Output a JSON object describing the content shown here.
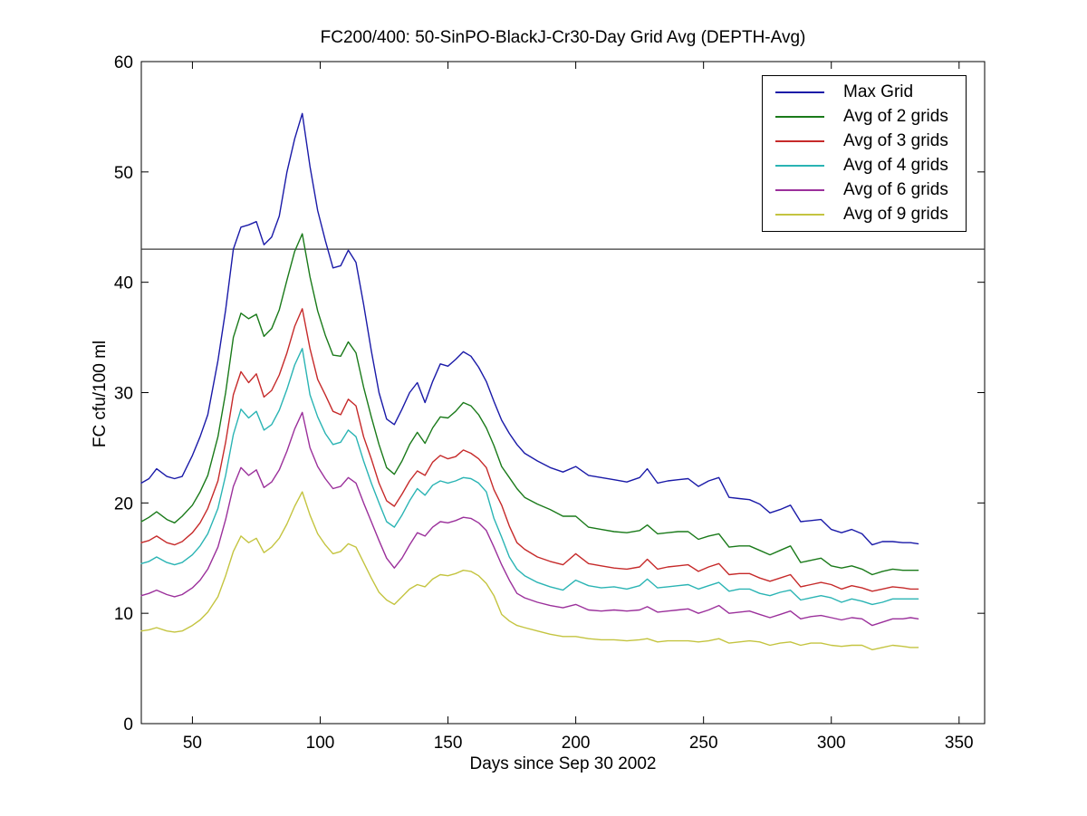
{
  "background": "#ffffff",
  "axes_color": "#000000",
  "chart_data": {
    "type": "line",
    "title": "FC200/400: 50-SinPO-BlackJ-Cr30-Day Grid Avg (DEPTH-Avg)",
    "xlabel": "Days since Sep 30 2002",
    "ylabel": "FC cfu/100 ml",
    "xlim": [
      30,
      360
    ],
    "ylim": [
      0,
      60
    ],
    "xticks": [
      50,
      100,
      150,
      200,
      250,
      300,
      350
    ],
    "yticks": [
      0,
      10,
      20,
      30,
      40,
      50,
      60
    ],
    "grid": false,
    "legend_position": "upper right",
    "reference_line": {
      "y": 43,
      "color": "#3a3a3a"
    },
    "x": [
      30,
      33,
      36,
      40,
      43,
      46,
      50,
      53,
      56,
      60,
      63,
      66,
      69,
      72,
      75,
      78,
      81,
      84,
      87,
      90,
      93,
      96,
      99,
      102,
      105,
      108,
      111,
      114,
      117,
      120,
      123,
      126,
      129,
      132,
      135,
      138,
      141,
      144,
      147,
      150,
      153,
      156,
      159,
      162,
      165,
      168,
      171,
      174,
      177,
      180,
      185,
      190,
      195,
      200,
      205,
      210,
      215,
      220,
      225,
      228,
      232,
      236,
      240,
      244,
      248,
      252,
      256,
      260,
      264,
      268,
      272,
      276,
      280,
      284,
      288,
      292,
      296,
      300,
      304,
      308,
      312,
      316,
      320,
      324,
      328,
      331,
      334
    ],
    "series": [
      {
        "name": "Max Grid",
        "color": "#1a1aa8",
        "values": [
          21.8,
          22.2,
          23.1,
          22.4,
          22.2,
          22.4,
          24.3,
          26.0,
          28.0,
          32.9,
          37.5,
          43.0,
          45.0,
          45.2,
          45.5,
          43.4,
          44.1,
          46.0,
          50.0,
          53.0,
          55.3,
          50.5,
          46.5,
          43.8,
          41.3,
          41.5,
          42.9,
          41.8,
          38.0,
          33.8,
          30.0,
          27.6,
          27.1,
          28.5,
          30.0,
          30.9,
          29.1,
          31.0,
          32.6,
          32.4,
          33.0,
          33.7,
          33.3,
          32.3,
          31.0,
          29.2,
          27.5,
          26.3,
          25.3,
          24.5,
          23.8,
          23.2,
          22.8,
          23.3,
          22.5,
          22.3,
          22.1,
          21.9,
          22.3,
          23.1,
          21.8,
          22.0,
          22.1,
          22.2,
          21.5,
          22.0,
          22.3,
          20.5,
          20.4,
          20.3,
          19.9,
          19.1,
          19.4,
          19.8,
          18.3,
          18.4,
          18.5,
          17.6,
          17.3,
          17.6,
          17.2,
          16.2,
          16.5,
          16.5,
          16.4,
          16.4,
          16.3
        ]
      },
      {
        "name": "Avg of 2 grids",
        "color": "#1a7a1a",
        "values": [
          18.3,
          18.7,
          19.2,
          18.5,
          18.2,
          18.8,
          19.8,
          21.0,
          22.5,
          26.0,
          30.0,
          35.0,
          37.2,
          36.7,
          37.1,
          35.1,
          35.8,
          37.5,
          40.2,
          42.8,
          44.4,
          40.5,
          37.4,
          35.2,
          33.4,
          33.3,
          34.6,
          33.6,
          30.5,
          27.8,
          25.3,
          23.2,
          22.6,
          23.8,
          25.3,
          26.4,
          25.4,
          26.8,
          27.8,
          27.7,
          28.3,
          29.1,
          28.8,
          28.0,
          26.8,
          25.2,
          23.3,
          22.3,
          21.3,
          20.5,
          19.9,
          19.4,
          18.8,
          18.8,
          17.8,
          17.6,
          17.4,
          17.3,
          17.5,
          18.0,
          17.2,
          17.3,
          17.4,
          17.4,
          16.7,
          17.0,
          17.2,
          16.0,
          16.1,
          16.1,
          15.7,
          15.3,
          15.7,
          16.1,
          14.6,
          14.8,
          15.0,
          14.3,
          14.1,
          14.3,
          14.0,
          13.5,
          13.8,
          14.0,
          13.9,
          13.9,
          13.9
        ]
      },
      {
        "name": "Avg of 3 grids",
        "color": "#c62a2a",
        "values": [
          16.4,
          16.6,
          17.0,
          16.4,
          16.2,
          16.5,
          17.3,
          18.2,
          19.5,
          22.0,
          25.5,
          29.8,
          31.9,
          30.9,
          31.7,
          29.6,
          30.2,
          31.6,
          33.6,
          36.0,
          37.6,
          34.0,
          31.2,
          29.8,
          28.3,
          28.0,
          29.4,
          28.8,
          26.0,
          24.0,
          21.8,
          20.2,
          19.7,
          20.8,
          22.0,
          22.9,
          22.5,
          23.7,
          24.3,
          24.0,
          24.2,
          24.8,
          24.5,
          24.0,
          23.2,
          21.2,
          19.8,
          17.9,
          16.4,
          15.8,
          15.1,
          14.7,
          14.4,
          15.4,
          14.5,
          14.3,
          14.1,
          14.0,
          14.2,
          14.9,
          14.0,
          14.2,
          14.3,
          14.4,
          13.8,
          14.2,
          14.5,
          13.5,
          13.6,
          13.6,
          13.2,
          12.9,
          13.2,
          13.5,
          12.4,
          12.6,
          12.8,
          12.6,
          12.2,
          12.5,
          12.3,
          12.0,
          12.2,
          12.4,
          12.3,
          12.2,
          12.2
        ]
      },
      {
        "name": "Avg of 4 grids",
        "color": "#2ab4b4",
        "values": [
          14.5,
          14.7,
          15.1,
          14.6,
          14.4,
          14.6,
          15.3,
          16.1,
          17.2,
          19.5,
          22.5,
          26.2,
          28.5,
          27.7,
          28.3,
          26.6,
          27.1,
          28.4,
          30.3,
          32.5,
          34.0,
          29.8,
          27.8,
          26.3,
          25.3,
          25.5,
          26.6,
          26.0,
          23.8,
          21.8,
          20.0,
          18.3,
          17.8,
          18.9,
          20.2,
          21.3,
          20.7,
          21.6,
          22.0,
          21.8,
          22.0,
          22.3,
          22.2,
          21.8,
          21.0,
          18.6,
          16.9,
          15.1,
          14.0,
          13.4,
          12.8,
          12.4,
          12.1,
          13.0,
          12.5,
          12.3,
          12.4,
          12.2,
          12.5,
          13.1,
          12.3,
          12.4,
          12.5,
          12.6,
          12.2,
          12.5,
          12.8,
          12.0,
          12.2,
          12.2,
          11.8,
          11.6,
          11.9,
          12.1,
          11.2,
          11.4,
          11.6,
          11.4,
          11.0,
          11.3,
          11.1,
          10.8,
          11.0,
          11.3,
          11.3,
          11.3,
          11.3
        ]
      },
      {
        "name": "Avg of 6 grids",
        "color": "#9b309b",
        "values": [
          11.6,
          11.8,
          12.1,
          11.7,
          11.5,
          11.7,
          12.3,
          13.0,
          14.0,
          16.0,
          18.5,
          21.5,
          23.2,
          22.5,
          23.0,
          21.4,
          21.9,
          23.0,
          24.7,
          26.7,
          28.2,
          25.0,
          23.3,
          22.2,
          21.3,
          21.5,
          22.3,
          21.8,
          20.0,
          18.3,
          16.6,
          15.0,
          14.1,
          15.0,
          16.2,
          17.3,
          17.0,
          17.8,
          18.3,
          18.2,
          18.4,
          18.7,
          18.6,
          18.2,
          17.5,
          16.0,
          14.4,
          13.0,
          11.8,
          11.4,
          11.0,
          10.7,
          10.5,
          10.8,
          10.3,
          10.2,
          10.3,
          10.2,
          10.3,
          10.6,
          10.1,
          10.2,
          10.3,
          10.4,
          10.0,
          10.3,
          10.7,
          10.0,
          10.1,
          10.2,
          9.9,
          9.6,
          9.9,
          10.2,
          9.5,
          9.7,
          9.8,
          9.6,
          9.4,
          9.6,
          9.5,
          8.9,
          9.2,
          9.5,
          9.5,
          9.6,
          9.5
        ]
      },
      {
        "name": "Avg of 9 grids",
        "color": "#c4c440",
        "values": [
          8.4,
          8.5,
          8.7,
          8.4,
          8.3,
          8.4,
          8.9,
          9.4,
          10.1,
          11.5,
          13.4,
          15.6,
          17.0,
          16.4,
          16.8,
          15.5,
          16.0,
          16.8,
          18.1,
          19.7,
          21.0,
          18.9,
          17.2,
          16.2,
          15.4,
          15.6,
          16.3,
          16.0,
          14.6,
          13.2,
          11.9,
          11.2,
          10.8,
          11.5,
          12.2,
          12.6,
          12.4,
          13.1,
          13.5,
          13.4,
          13.6,
          13.9,
          13.8,
          13.4,
          12.7,
          11.6,
          9.9,
          9.3,
          8.9,
          8.7,
          8.4,
          8.1,
          7.9,
          7.9,
          7.7,
          7.6,
          7.6,
          7.5,
          7.6,
          7.7,
          7.4,
          7.5,
          7.5,
          7.5,
          7.4,
          7.5,
          7.7,
          7.3,
          7.4,
          7.5,
          7.4,
          7.1,
          7.3,
          7.4,
          7.1,
          7.3,
          7.3,
          7.1,
          7.0,
          7.1,
          7.1,
          6.7,
          6.9,
          7.1,
          7.0,
          6.9,
          6.9
        ]
      }
    ]
  }
}
